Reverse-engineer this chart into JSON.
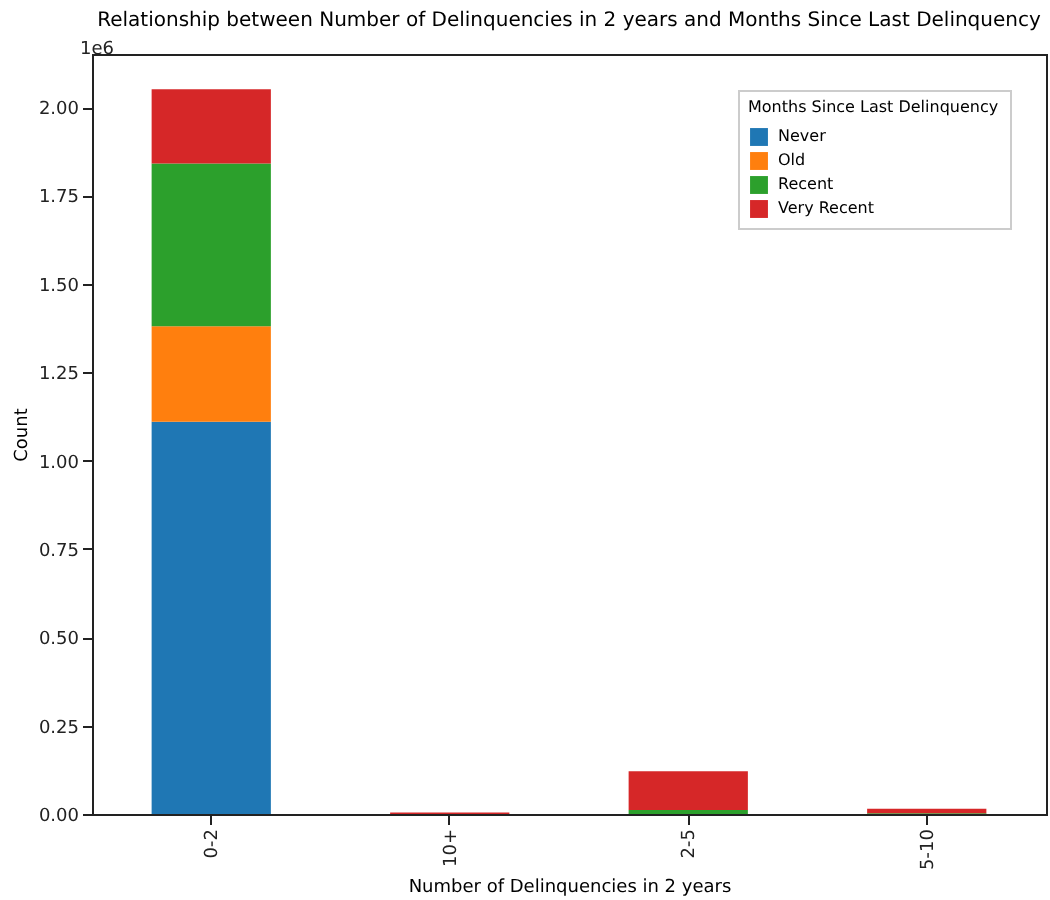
{
  "chart_data": {
    "type": "bar",
    "stacked": true,
    "title": "Relationship between Number of Delinquencies in 2 years and Months Since Last Delinquency",
    "xlabel": "Number of Delinquencies in 2 years",
    "ylabel": "Count",
    "legend_title": "Months Since Last Delinquency",
    "legend": "top right",
    "annotations": [
      "1e6"
    ],
    "categories": [
      "0-2",
      "10+",
      "2-5",
      "5-10"
    ],
    "series": [
      {
        "name": "Never",
        "color": "#1f77b4",
        "values": [
          1.11,
          0,
          0,
          0
        ]
      },
      {
        "name": "Old",
        "color": "#ff7f0e",
        "values": [
          0.27,
          0,
          0,
          0
        ]
      },
      {
        "name": "Recent",
        "color": "#2ca02c",
        "values": [
          0.46,
          0,
          0.011,
          0.002
        ]
      },
      {
        "name": "Very Recent",
        "color": "#d62728",
        "values": [
          0.21,
          0.004,
          0.11,
          0.013
        ]
      }
    ],
    "ylim": [
      0,
      2.15
    ],
    "yticks": [
      {
        "value": 0,
        "label": "0.00"
      },
      {
        "value": 0.25,
        "label": "0.25"
      },
      {
        "value": 0.5,
        "label": "0.50"
      },
      {
        "value": 0.75,
        "label": "0.75"
      },
      {
        "value": 1,
        "label": "1.00"
      },
      {
        "value": 1.25,
        "label": "1.25"
      },
      {
        "value": 1.5,
        "label": "1.50"
      },
      {
        "value": 1.75,
        "label": "1.75"
      },
      {
        "value": 2,
        "label": "2.00"
      }
    ]
  }
}
